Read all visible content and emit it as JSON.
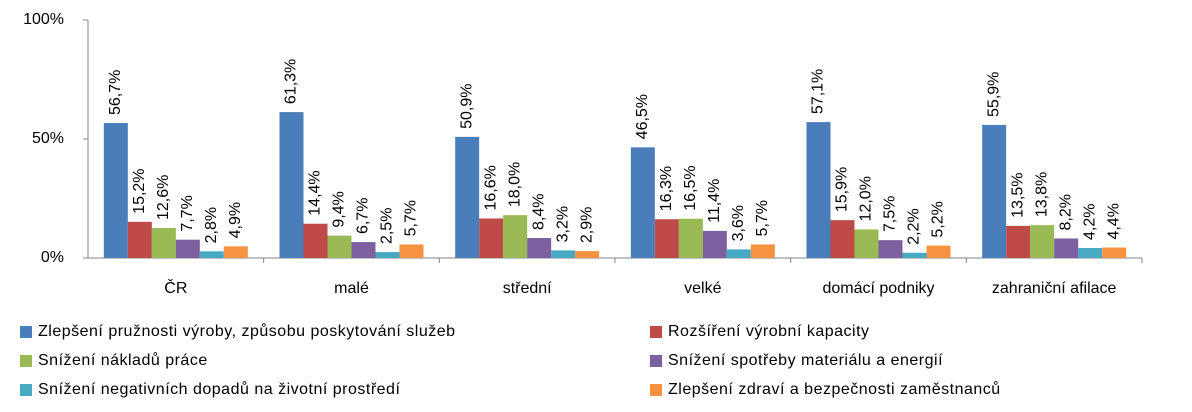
{
  "chart_data": {
    "type": "bar",
    "categories": [
      "ČR",
      "malé",
      "střední",
      "velké",
      "domácí podniky",
      "zahraniční afilace"
    ],
    "series": [
      {
        "name": "Zlepšení pružnosti výroby, způsobu poskytování služeb",
        "color": "#4a7ebb",
        "values": [
          56.7,
          61.3,
          50.9,
          46.5,
          57.1,
          55.9
        ],
        "value_labels": [
          "56,7%",
          "61,3%",
          "50,9%",
          "46,5%",
          "57,1%",
          "55,9%"
        ]
      },
      {
        "name": "Rozšíření výrobní kapacity",
        "color": "#be4b48",
        "values": [
          15.2,
          14.4,
          16.6,
          16.3,
          15.9,
          13.5
        ],
        "value_labels": [
          "15,2%",
          "14,4%",
          "16,6%",
          "16,3%",
          "15,9%",
          "13,5%"
        ]
      },
      {
        "name": "Snížení nákladů práce",
        "color": "#98b954",
        "values": [
          12.6,
          9.4,
          18.0,
          16.5,
          12.0,
          13.8
        ],
        "value_labels": [
          "12,6%",
          "9,4%",
          "18,0%",
          "16,5%",
          "12,0%",
          "13,8%"
        ]
      },
      {
        "name": "Snížení spotřeby materiálu a energií",
        "color": "#7d60a0",
        "values": [
          7.7,
          6.7,
          8.4,
          11.4,
          7.5,
          8.2
        ],
        "value_labels": [
          "7,7%",
          "6,7%",
          "8,4%",
          "11,4%",
          "7,5%",
          "8,2%"
        ]
      },
      {
        "name": "Snížení negativních dopadů na životní prostředí",
        "color": "#46aac5",
        "values": [
          2.8,
          2.5,
          3.2,
          3.6,
          2.2,
          4.2
        ],
        "value_labels": [
          "2,8%",
          "2,5%",
          "3,2%",
          "3,6%",
          "2,2%",
          "4,2%"
        ]
      },
      {
        "name": "Zlepšení zdraví a bezpečnosti zaměstnanců",
        "color": "#f69240",
        "values": [
          4.9,
          5.7,
          2.9,
          5.7,
          5.2,
          4.4
        ],
        "value_labels": [
          "4,9%",
          "5,7%",
          "2,9%",
          "5,7%",
          "5,2%",
          "4,4%"
        ]
      }
    ],
    "ylim": [
      0,
      100
    ],
    "yticks": [
      {
        "value": 0,
        "label": "0%"
      },
      {
        "value": 50,
        "label": "50%"
      },
      {
        "value": 100,
        "label": "100%"
      }
    ]
  }
}
